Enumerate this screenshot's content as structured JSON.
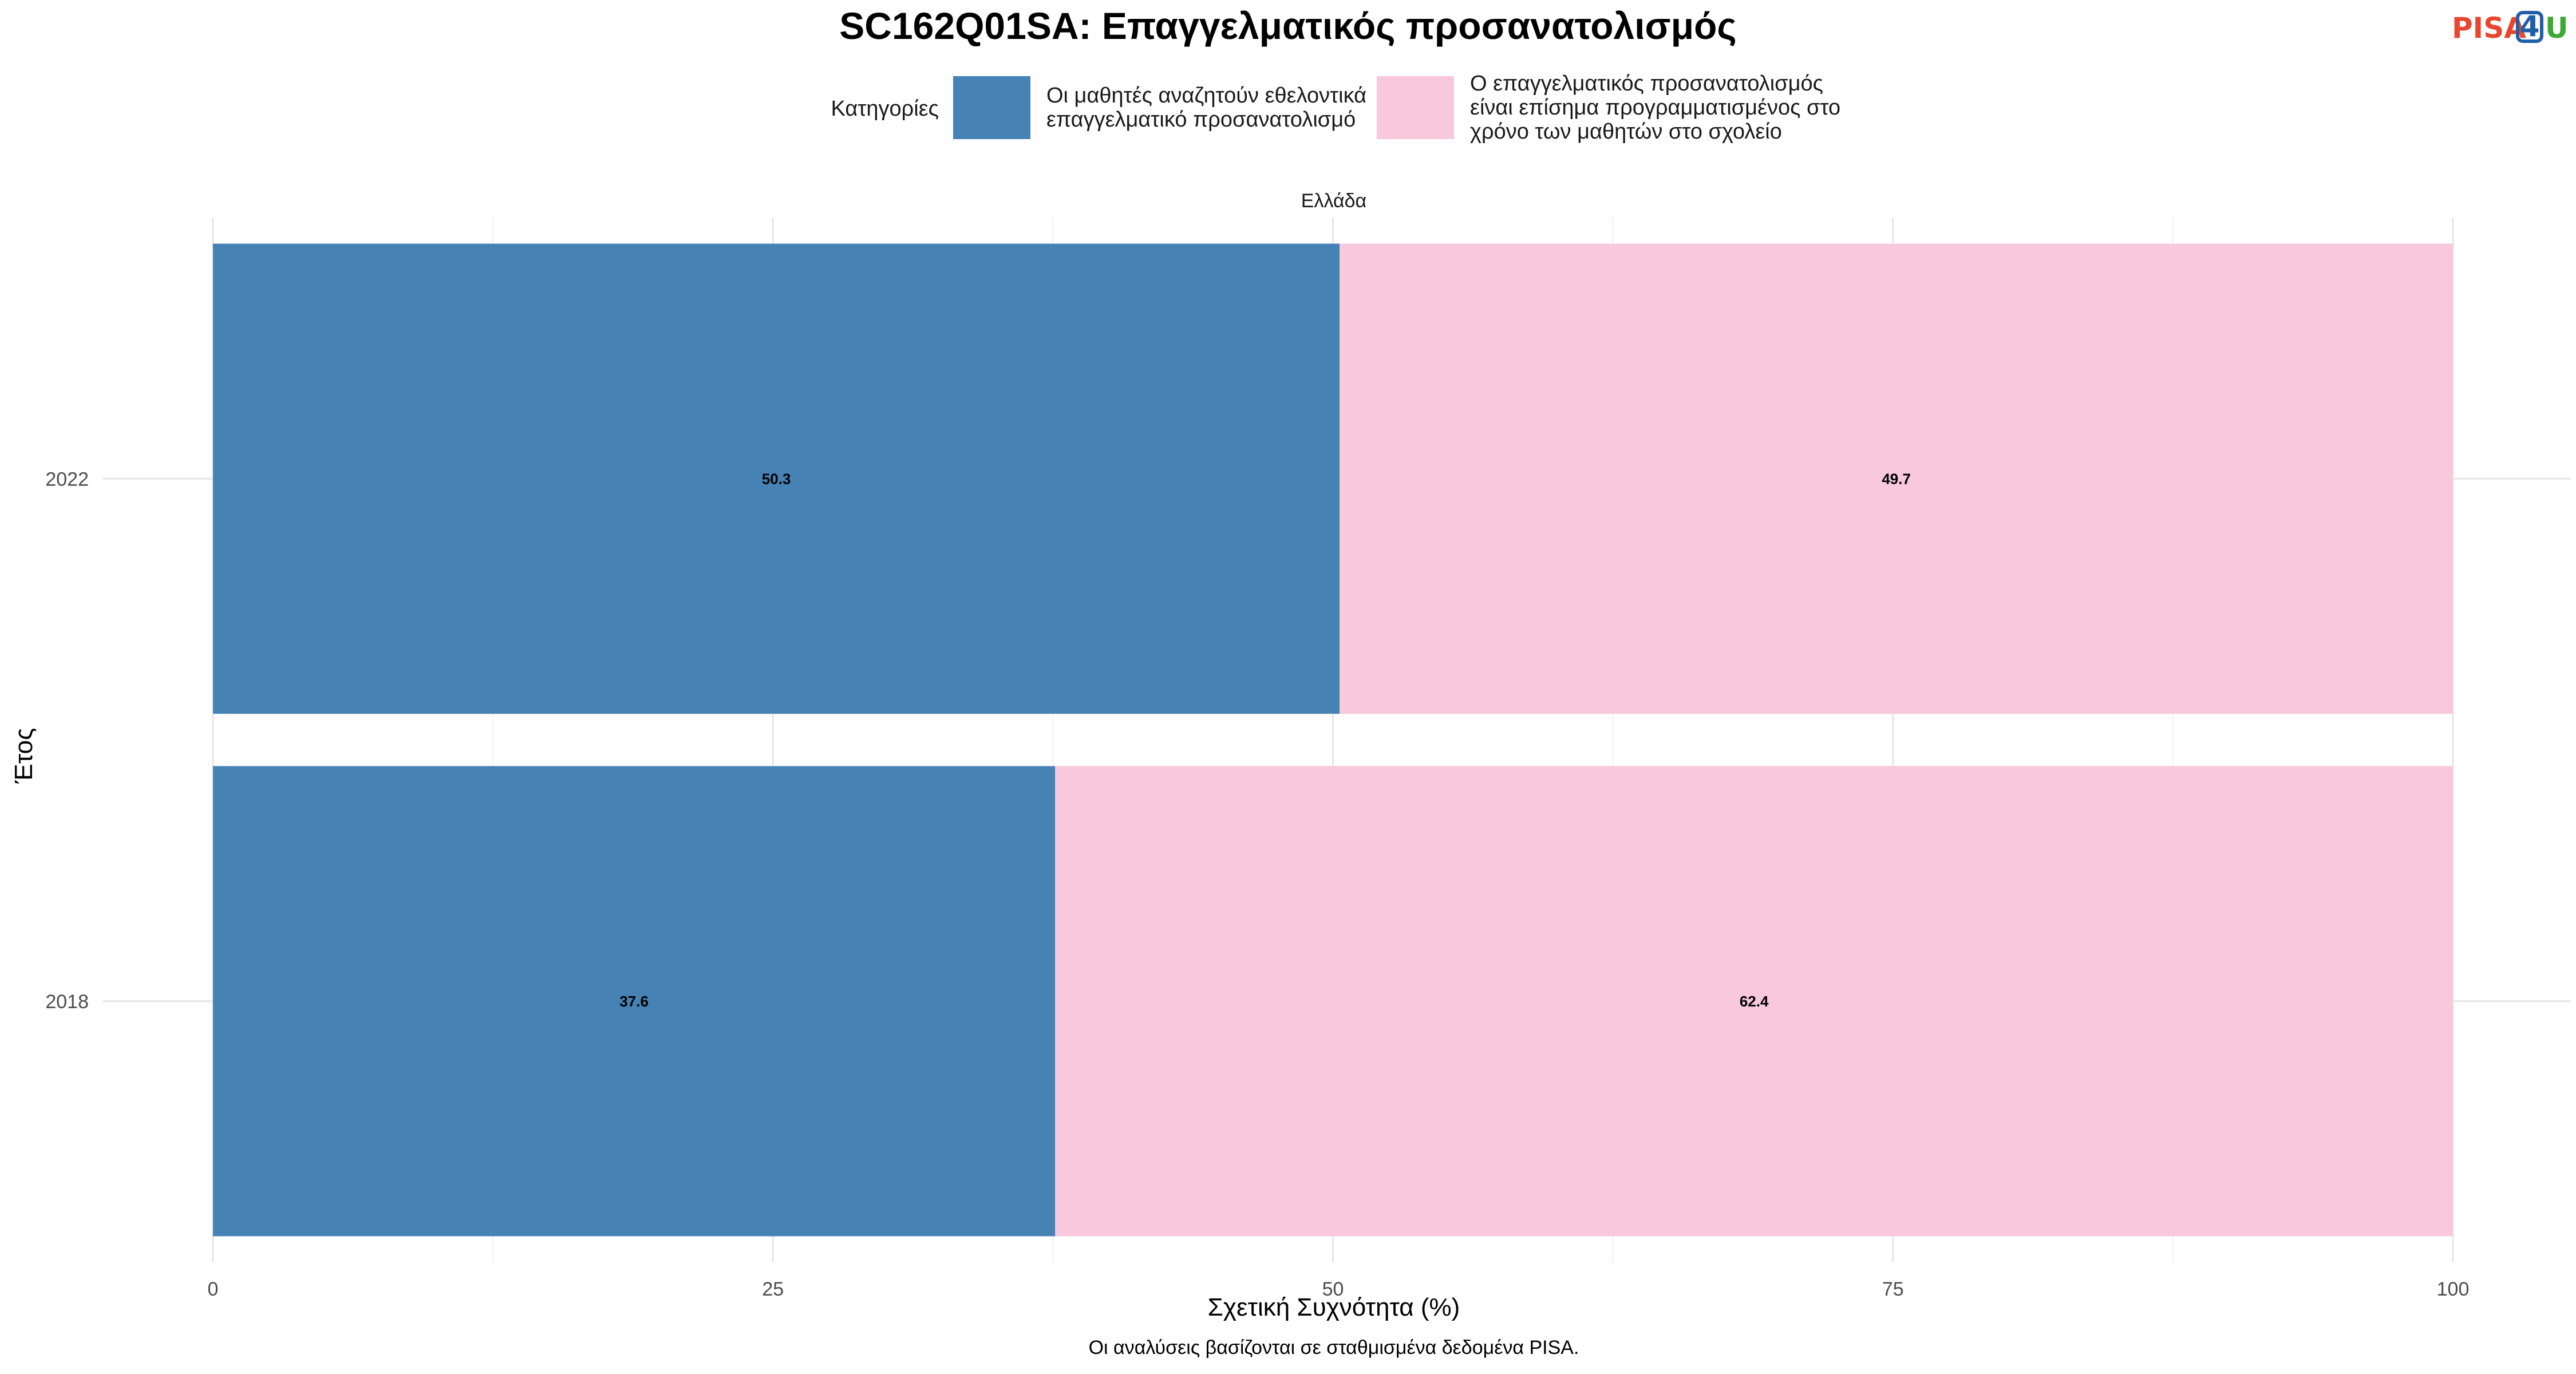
{
  "logo": {
    "text_part1": "PISA",
    "text_part2": "4",
    "text_part3": "U",
    "colors": {
      "pisa": "#E8462E",
      "four": "#1F5FA8",
      "u": "#3BAA35"
    }
  },
  "chart_data": {
    "type": "bar",
    "orientation": "horizontal",
    "stacked": true,
    "title": "SC162Q01SA: Επαγγελματικός προσανατολισμός",
    "facet": "Ελλάδα",
    "legend": {
      "title": "Κατηγορίες",
      "placement": "top"
    },
    "xlabel": "Σχετική Συχνότητα (%)",
    "ylabel": "Έτος",
    "xlim": [
      0,
      100
    ],
    "xticks": [
      "0",
      "25",
      "50",
      "75",
      "100"
    ],
    "categories": [
      "2022",
      "2018"
    ],
    "series": [
      {
        "name": "Οι μαθητές αναζητούν εθελοντικά επαγγελματικό προσανατολισμό",
        "name_lines": [
          "Οι μαθητές αναζητούν εθελοντικά",
          "επαγγελματικό προσανατολισμό"
        ],
        "color": "#4682B4",
        "values": [
          50.3,
          37.6
        ]
      },
      {
        "name": "Ο επαγγελματικός προσανατολισμός είναι επίσημα προγραμματισμένος στο χρόνο των μαθητών στο σχολείο",
        "name_lines": [
          "Ο επαγγελματικός προσανατολισμός",
          "είναι επίσημα προγραμματισμένος στο",
          "χρόνο των μαθητών στο σχολείο"
        ],
        "color": "#F8C8DC",
        "values": [
          49.7,
          62.4
        ]
      }
    ],
    "grid": true,
    "caption": "Οι αναλύσεις βασίζονται σε σταθμισμένα δεδομένα PISA."
  }
}
